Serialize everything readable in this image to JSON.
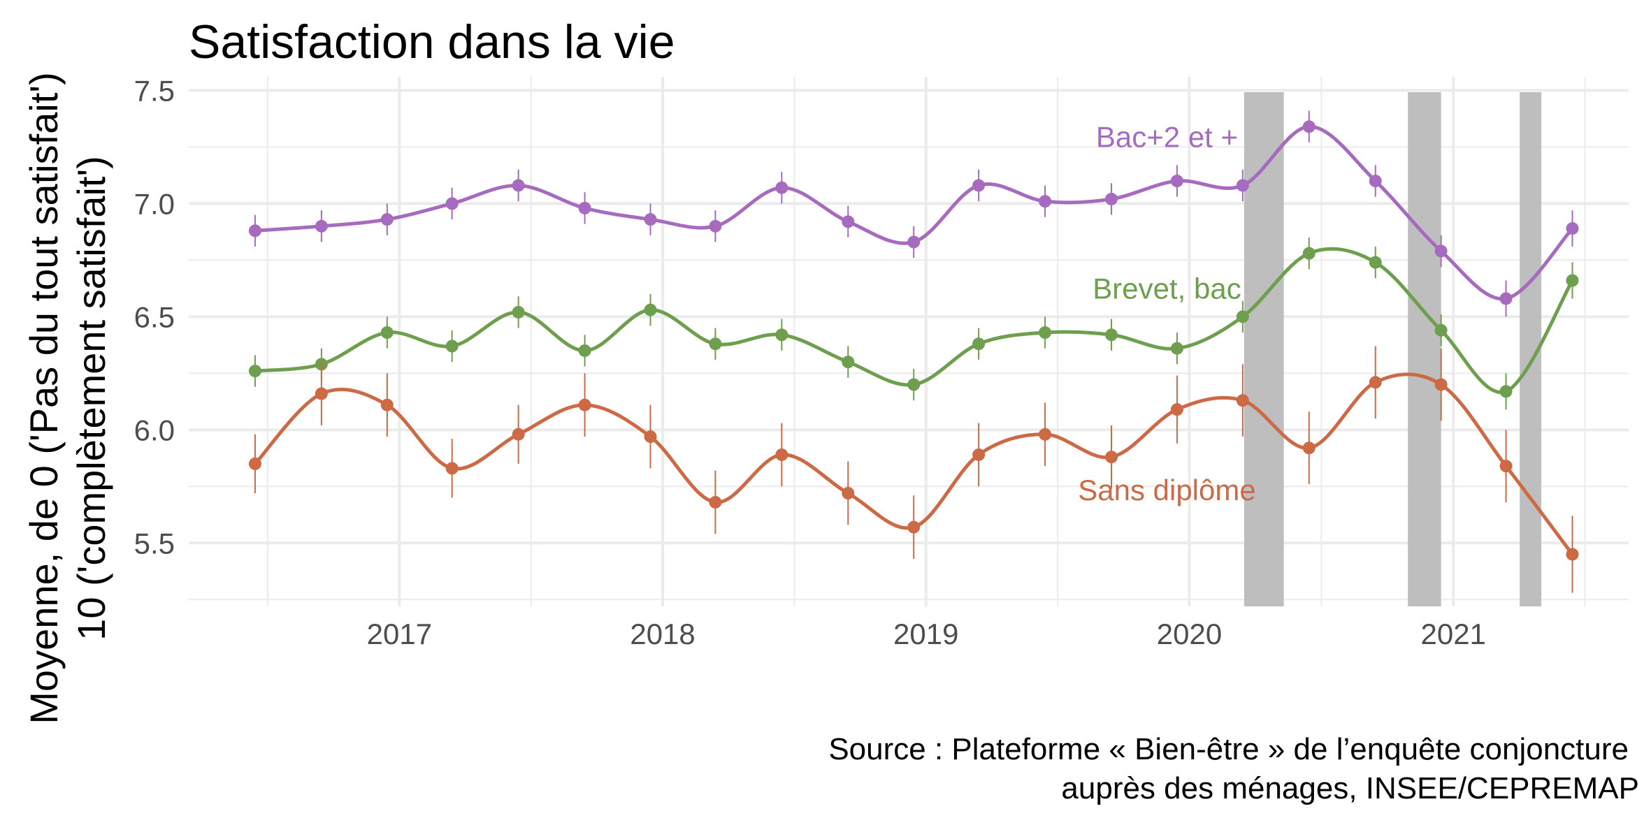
{
  "chart_data": {
    "type": "line",
    "title": "Satisfaction dans la vie",
    "ylabel_line1": "Moyenne, de 0 ('Pas du tout satisfait')",
    "ylabel_line2": "10 ('complètement satisfait')",
    "xlabel": "",
    "caption_line1": "Source : Plateforme « Bien-être » de l’enquête conjoncture",
    "caption_line2": "auprès des ménages, INSEE/CEPREMAP",
    "xlim": [
      "2016-03-15",
      "2021-09-01"
    ],
    "ylim": [
      5.22,
      7.56
    ],
    "x_ticks": [
      "2017-01-01",
      "2018-01-01",
      "2019-01-01",
      "2020-01-01",
      "2021-01-01"
    ],
    "x_tick_labels": [
      "2017",
      "2018",
      "2019",
      "2020",
      "2021"
    ],
    "y_ticks": [
      5.5,
      6.0,
      6.5,
      7.0,
      7.5
    ],
    "y_tick_labels": [
      "5.5",
      "6.0",
      "6.5",
      "7.0",
      "7.5"
    ],
    "grid": true,
    "shaded_periods": [
      [
        "2020-03-17",
        "2020-05-11"
      ],
      [
        "2020-10-30",
        "2020-12-15"
      ],
      [
        "2021-04-03",
        "2021-05-03"
      ]
    ],
    "x": [
      "2016-06-15",
      "2016-09-15",
      "2016-12-15",
      "2017-03-15",
      "2017-06-15",
      "2017-09-15",
      "2017-12-15",
      "2018-03-15",
      "2018-06-15",
      "2018-09-15",
      "2018-12-15",
      "2019-03-15",
      "2019-06-15",
      "2019-09-15",
      "2019-12-15",
      "2020-03-15",
      "2020-06-15",
      "2020-09-15",
      "2020-12-15",
      "2021-03-15",
      "2021-06-15"
    ],
    "series": [
      {
        "name": "Bac+2 et +",
        "color": "#a66bbf",
        "values": [
          6.88,
          6.9,
          6.93,
          7.0,
          7.08,
          6.98,
          6.93,
          6.9,
          7.07,
          6.92,
          6.83,
          7.08,
          7.01,
          7.02,
          7.1,
          7.08,
          7.34,
          7.1,
          6.79,
          6.58,
          6.89
        ],
        "lower": [
          6.81,
          6.83,
          6.86,
          6.93,
          7.01,
          6.91,
          6.86,
          6.83,
          7.0,
          6.85,
          6.76,
          7.01,
          6.94,
          6.95,
          7.03,
          7.01,
          7.27,
          7.03,
          6.72,
          6.5,
          6.81
        ],
        "upper": [
          6.95,
          6.97,
          7.0,
          7.07,
          7.15,
          7.05,
          7.0,
          6.97,
          7.14,
          6.99,
          6.9,
          7.15,
          7.08,
          7.09,
          7.17,
          7.15,
          7.41,
          7.17,
          6.86,
          6.66,
          6.97
        ]
      },
      {
        "name": "Brevet, bac",
        "color": "#6e9f4e",
        "values": [
          6.26,
          6.29,
          6.43,
          6.37,
          6.52,
          6.35,
          6.53,
          6.38,
          6.42,
          6.3,
          6.2,
          6.38,
          6.43,
          6.42,
          6.36,
          6.5,
          6.78,
          6.74,
          6.44,
          6.17,
          6.66
        ],
        "lower": [
          6.19,
          6.22,
          6.36,
          6.3,
          6.45,
          6.28,
          6.46,
          6.31,
          6.35,
          6.23,
          6.13,
          6.31,
          6.36,
          6.35,
          6.29,
          6.43,
          6.71,
          6.67,
          6.37,
          6.09,
          6.58
        ],
        "upper": [
          6.33,
          6.36,
          6.5,
          6.44,
          6.59,
          6.42,
          6.6,
          6.45,
          6.49,
          6.37,
          6.27,
          6.45,
          6.5,
          6.49,
          6.43,
          6.57,
          6.85,
          6.81,
          6.51,
          6.25,
          6.74
        ]
      },
      {
        "name": "Sans diplôme",
        "color": "#cc6a45",
        "values": [
          5.85,
          6.16,
          6.11,
          5.83,
          5.98,
          6.11,
          5.97,
          5.68,
          5.89,
          5.72,
          5.57,
          5.89,
          5.98,
          5.88,
          6.09,
          6.13,
          5.92,
          6.21,
          6.2,
          5.84,
          5.45
        ],
        "lower": [
          5.72,
          6.02,
          5.97,
          5.7,
          5.85,
          5.97,
          5.83,
          5.54,
          5.75,
          5.58,
          5.43,
          5.75,
          5.84,
          5.74,
          5.94,
          5.97,
          5.76,
          6.05,
          6.04,
          5.68,
          5.28
        ],
        "upper": [
          5.98,
          6.3,
          6.25,
          5.96,
          6.11,
          6.25,
          6.11,
          5.82,
          6.03,
          5.86,
          5.71,
          6.03,
          6.12,
          6.02,
          6.24,
          6.29,
          6.08,
          6.37,
          6.36,
          6.0,
          5.62
        ]
      }
    ],
    "series_labels": [
      {
        "text": "Bac+2 et +",
        "x": "2019-12-01",
        "y": 7.25
      },
      {
        "text": "Brevet, bac",
        "x": "2019-12-01",
        "y": 6.58
      },
      {
        "text": "Sans diplôme",
        "x": "2019-12-01",
        "y": 5.69
      }
    ]
  }
}
